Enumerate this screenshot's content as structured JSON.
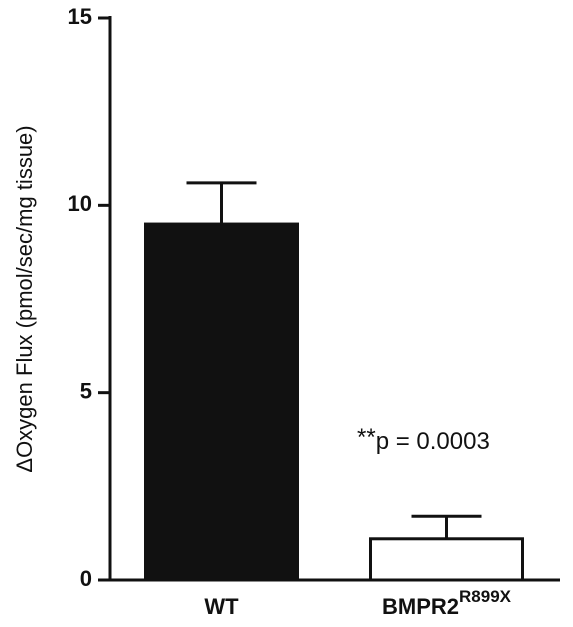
{
  "chart_data": {
    "type": "bar",
    "y_label": "ΔOxygen Flux (pmol/sec/mg tissue)",
    "categories": [
      {
        "label": "WT"
      },
      {
        "label": "BMPR2",
        "superscript": "R899X"
      }
    ],
    "values": [
      9.5,
      1.1
    ],
    "errors": [
      1.1,
      0.6
    ],
    "colors": [
      "#111111",
      "#ffffff"
    ],
    "ylim": [
      0,
      15
    ],
    "yticks": [
      0,
      5,
      10,
      15
    ],
    "annotation": {
      "prefix": "**",
      "text": "p = 0.0003"
    }
  }
}
